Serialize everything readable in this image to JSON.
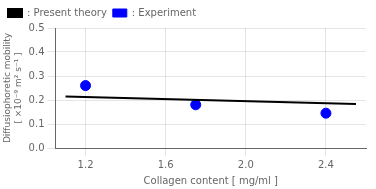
{
  "chart_data": {
    "type": "line",
    "xlabel": "Collagen content [ mg/ml ]",
    "ylabel": [
      "Diffusiophoretic mobility",
      "[ ×10⁻⁹ m² s⁻¹ ]"
    ],
    "series": [
      {
        "name": ": Present theory",
        "type": "line",
        "color": "#000000",
        "x": [
          1.1,
          2.55
        ],
        "values": [
          0.215,
          0.183
        ]
      },
      {
        "name": ": Experiment",
        "type": "scatter",
        "marker": "circle",
        "color": "#0000ff",
        "x": [
          1.2,
          1.75,
          2.4
        ],
        "values": [
          0.26,
          0.18,
          0.145
        ]
      }
    ],
    "xlim": [
      1.05,
      2.6
    ],
    "ylim": [
      0.0,
      0.5
    ],
    "xticks": [
      1.2,
      1.6,
      {
        "value": 2.0,
        "label": "2.0"
      },
      2.4
    ],
    "yticks": [
      {
        "value": 0.0,
        "label": "0.0"
      },
      0.1,
      0.2,
      0.3,
      0.4,
      0.5
    ],
    "grid": true,
    "legend": "upper left"
  }
}
